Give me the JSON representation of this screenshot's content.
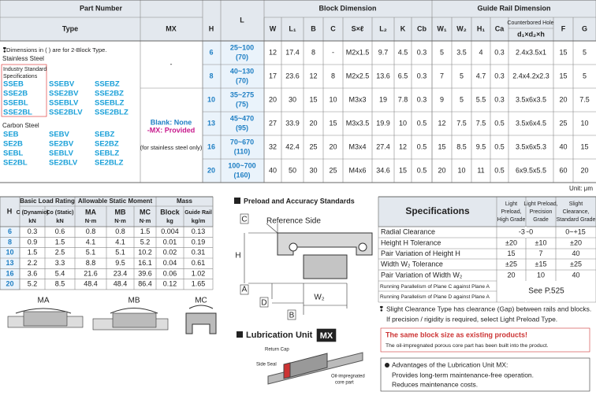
{
  "top_table": {
    "part_number": "Part Number",
    "type": "Type",
    "mx": "MX",
    "h": "H",
    "l": "L",
    "block_dimension": "Block Dimension",
    "guide_rail_dimension": "Guide Rail Dimension",
    "counterbored": "Counterbored Hole",
    "block_cols": [
      "W",
      "L₁",
      "B",
      "C",
      "S×ℓ",
      "L₂",
      "K",
      "Cb"
    ],
    "rail_cols": [
      "W₁",
      "W₂",
      "H₁",
      "Ca",
      "d₁×d₂×h",
      "F",
      "G"
    ],
    "note": "Dimensions in ( ) are for 2-Block Type.",
    "stainless_label": "Stainless Steel",
    "industry_label": [
      "Industry Standard",
      "Specifications"
    ],
    "stainless_types": [
      [
        "SSEB",
        "SSE2B",
        "SSEBL",
        "SSE2BL"
      ],
      [
        "SSEBV",
        "SSE2BV",
        "SSEBLV",
        "SSE2BLV"
      ],
      [
        "SSEBZ",
        "SSE2BZ",
        "SSEBLZ",
        "SSE2BLZ"
      ]
    ],
    "carbon_label": "Carbon Steel",
    "carbon_types": [
      [
        "SEB",
        "SE2B",
        "SEBL",
        "SE2BL"
      ],
      [
        "SEBV",
        "SE2BV",
        "SEBLV",
        "SE2BLV"
      ],
      [
        "SEBZ",
        "SE2BZ",
        "SEBLZ",
        "SE2BLZ"
      ]
    ],
    "mx_dash": "-",
    "mx_options": [
      "Blank: None",
      "-MX: Provided",
      "(for stainless steel only)"
    ],
    "rows": [
      {
        "h": "6",
        "l": "25~100",
        "l2": "(70)",
        "cells": [
          "12",
          "17.4",
          "8",
          "-",
          "M2x1.5",
          "9.7",
          "4.5",
          "0.3",
          "5",
          "3.5",
          "4",
          "0.3",
          "2.4x3.5x1",
          "15",
          "5"
        ]
      },
      {
        "h": "8",
        "l": "40~130",
        "l2": "(70)",
        "cells": [
          "17",
          "23.6",
          "12",
          "8",
          "M2x2.5",
          "13.6",
          "6.5",
          "0.3",
          "7",
          "5",
          "4.7",
          "0.3",
          "2.4x4.2x2.3",
          "15",
          "5"
        ]
      },
      {
        "h": "10",
        "l": "35~275",
        "l2": "(75)",
        "cells": [
          "20",
          "30",
          "15",
          "10",
          "M3x3",
          "19",
          "7.8",
          "0.3",
          "9",
          "5",
          "5.5",
          "0.3",
          "3.5x6x3.5",
          "20",
          "7.5"
        ]
      },
      {
        "h": "13",
        "l": "45~470",
        "l2": "(95)",
        "cells": [
          "27",
          "33.9",
          "20",
          "15",
          "M3x3.5",
          "19.9",
          "10",
          "0.5",
          "12",
          "7.5",
          "7.5",
          "0.5",
          "3.5x6x4.5",
          "25",
          "10"
        ]
      },
      {
        "h": "16",
        "l": "70~670",
        "l2": "(110)",
        "cells": [
          "32",
          "42.4",
          "25",
          "20",
          "M3x4",
          "27.4",
          "12",
          "0.5",
          "15",
          "8.5",
          "9.5",
          "0.5",
          "3.5x6x5.3",
          "40",
          "15"
        ]
      },
      {
        "h": "20",
        "l": "100~700",
        "l2": "(160)",
        "cells": [
          "40",
          "50",
          "30",
          "25",
          "M4x6",
          "34.6",
          "15",
          "0.5",
          "20",
          "10",
          "11",
          "0.5",
          "6x9.5x5.5",
          "60",
          "20"
        ]
      }
    ]
  },
  "unit": "Unit: μm",
  "load_table": {
    "h": "H",
    "basic": "Basic Load Rating",
    "moment": "Allowable Static Moment",
    "mass": "Mass",
    "cols": [
      [
        "C (Dynamic)",
        "kN"
      ],
      [
        "Co (Static)",
        "kN"
      ],
      [
        "MA",
        "N·m"
      ],
      [
        "MB",
        "N·m"
      ],
      [
        "MC",
        "N·m"
      ],
      [
        "Block",
        "kg"
      ],
      [
        "Guide Rail",
        "kg/m"
      ]
    ],
    "rows": [
      [
        "6",
        "0.3",
        "0.6",
        "0.8",
        "0.8",
        "1.5",
        "0.004",
        "0.13"
      ],
      [
        "8",
        "0.9",
        "1.5",
        "4.1",
        "4.1",
        "5.2",
        "0.01",
        "0.19"
      ],
      [
        "10",
        "1.5",
        "2.5",
        "5.1",
        "5.1",
        "10.2",
        "0.02",
        "0.31"
      ],
      [
        "13",
        "2.2",
        "3.3",
        "8.8",
        "9.5",
        "16.1",
        "0.04",
        "0.61"
      ],
      [
        "16",
        "3.6",
        "5.4",
        "21.6",
        "23.4",
        "39.6",
        "0.06",
        "1.02"
      ],
      [
        "20",
        "5.2",
        "8.5",
        "48.4",
        "48.4",
        "86.4",
        "0.12",
        "1.65"
      ]
    ]
  },
  "moments": [
    "MA",
    "MB",
    "MC"
  ],
  "preload": {
    "title": "Preload and Accuracy Standards",
    "labels": [
      "C",
      "Reference Side",
      "H",
      "A",
      "D",
      "W₂",
      "B"
    ]
  },
  "specs": {
    "title": "Specifications",
    "grades": [
      [
        "Light",
        "Preload,",
        "High Grade"
      ],
      [
        "Light Preload,",
        "Precision",
        "Grade"
      ],
      [
        "Slight",
        "Clearance,",
        "Standard Grade"
      ]
    ],
    "rows": [
      {
        "label": "Radial Clearance",
        "vals": [
          "-3~0",
          "0~+15"
        ]
      },
      {
        "label": "Height H Tolerance",
        "vals": [
          "±20",
          "±10",
          "±20"
        ]
      },
      {
        "label": "Pair Variation of Height H",
        "vals": [
          "15",
          "7",
          "40"
        ]
      },
      {
        "label": "Width W₂ Tolerance",
        "vals": [
          "±25",
          "±15",
          "±25"
        ]
      },
      {
        "label": "Pair Variation of Width W₂",
        "vals": [
          "20",
          "10",
          "40"
        ]
      }
    ],
    "parallel": [
      "Running Parallelism of Plane C against Plane A",
      "Running Parallelism of Plane D against Plane A"
    ],
    "see": "See P.525",
    "note": [
      "Slight Clearance Type has clearance (Gap) between rails and blocks.",
      "If precision / rigidity is required, select Light Preload Type."
    ]
  },
  "lubrication": {
    "title": "Lubrication Unit",
    "badge": "MX",
    "labels": [
      "Return Cap",
      "Side Seal",
      "Oil-impregnated",
      "core part"
    ],
    "headline": "The same block size as existing products!",
    "sub": "The oil-impregnated porous core part has been built into the product.",
    "advantages": [
      "Advantages of the Lubrication Unit MX:",
      "Provides long-term maintenance-free operation.",
      "Reduces maintenance costs."
    ]
  }
}
